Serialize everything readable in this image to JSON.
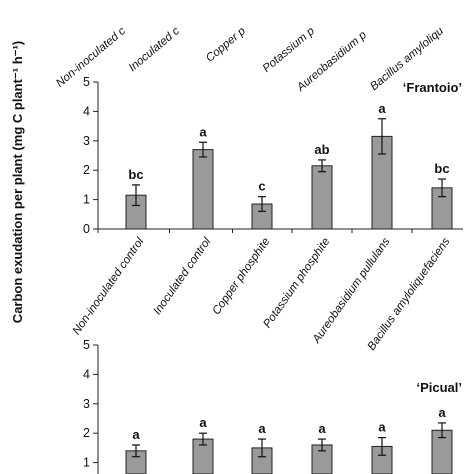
{
  "chart_data": [
    {
      "type": "bar",
      "partial": "top-cropped",
      "categories": [
        "Non-inoculated control",
        "Inoculated control",
        "Copper phosphite",
        "Potassium phosphite",
        "Aureobasidium pullulans",
        "Bacillus amyloliquefaciens"
      ],
      "visible_tick_labels": [
        "Non-inoculated c",
        "Inoculated c",
        "Copper p",
        "Potassium p",
        "Aureobasidium p",
        "Bacillus amyloliqu"
      ]
    },
    {
      "type": "bar",
      "title": "‘Frantoio’",
      "ylabel": "Carbon exudation per plant (mg C plant⁻¹ h⁻¹)",
      "ylim": [
        0,
        5
      ],
      "yticks": [
        "0",
        "1",
        "2",
        "3",
        "4",
        "5"
      ],
      "categories": [
        "Non-inoculated control",
        "Inoculated control",
        "Copper phosphite",
        "Potassium phosphite",
        "Aureobasidium pullulans",
        "Bacillus amyloliquefaciens"
      ],
      "values": [
        1.15,
        2.7,
        0.85,
        2.15,
        3.15,
        1.4
      ],
      "errors": [
        0.35,
        0.25,
        0.25,
        0.2,
        0.6,
        0.3
      ],
      "letters": [
        "bc",
        "a",
        "c",
        "ab",
        "a",
        "bc"
      ],
      "bar_color": "#9a9a9a"
    },
    {
      "type": "bar",
      "title": "‘Picual’",
      "partial": "bottom-cropped",
      "ylim": [
        0,
        5
      ],
      "yticks": [
        "1",
        "2",
        "3",
        "4",
        "5"
      ],
      "categories": [
        "Non-inoculated control",
        "Inoculated control",
        "Copper phosphite",
        "Potassium phosphite",
        "Aureobasidium pullulans",
        "Bacillus amyloliquefaciens"
      ],
      "values": [
        1.4,
        1.8,
        1.5,
        1.6,
        1.55,
        2.1
      ],
      "errors": [
        0.2,
        0.2,
        0.3,
        0.2,
        0.3,
        0.25
      ],
      "letters": [
        "a",
        "a",
        "a",
        "a",
        "a",
        "a"
      ],
      "bar_color": "#9a9a9a"
    }
  ]
}
